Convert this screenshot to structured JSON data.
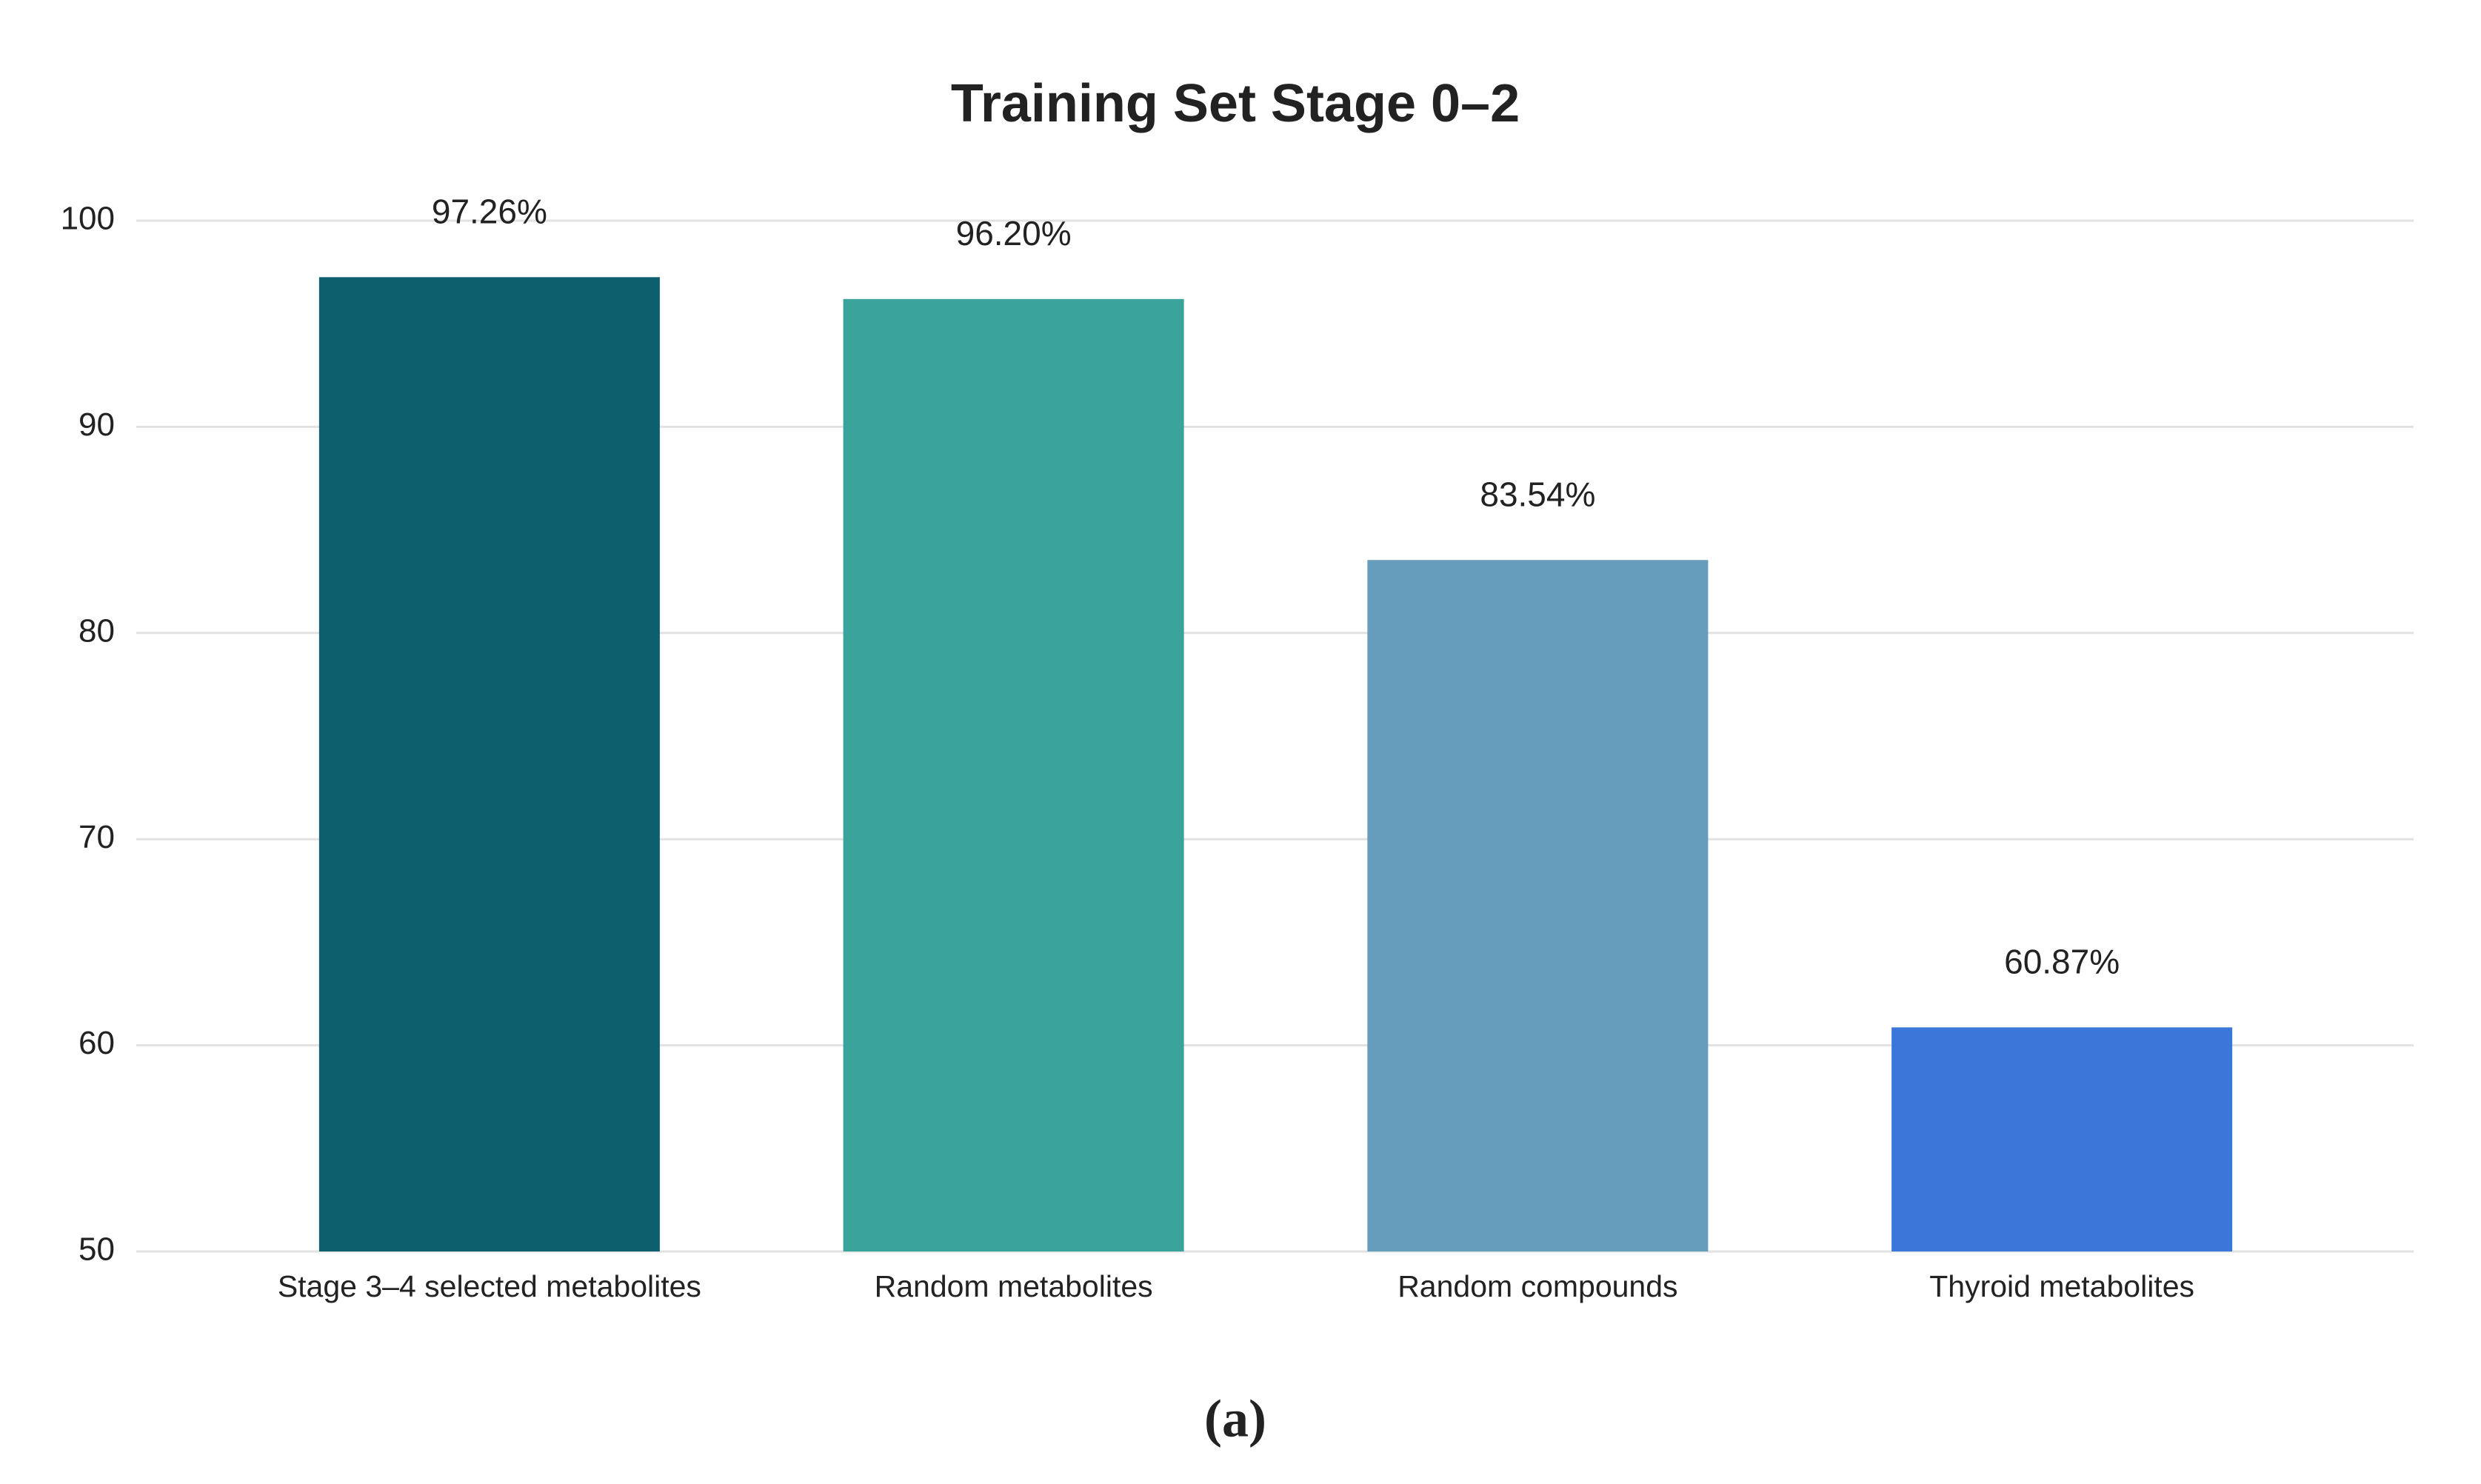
{
  "chart_data": {
    "type": "bar",
    "title": "Training Set Stage 0–2",
    "categories": [
      "Stage 3–4 selected metabolites",
      "Random metabolites",
      "Random compounds",
      "Thyroid metabolites"
    ],
    "values": [
      97.26,
      96.2,
      83.54,
      60.87
    ],
    "value_labels": [
      "97.26%",
      "96.20%",
      "83.54%",
      "60.87%"
    ],
    "colors": [
      "#0e5f6d",
      "#3aa39b",
      "#669dbd",
      "#3b76d9"
    ],
    "ylim": [
      50,
      100
    ],
    "yticks": [
      50,
      60,
      70,
      80,
      90,
      100
    ],
    "grid": true
  },
  "caption": "(a)"
}
